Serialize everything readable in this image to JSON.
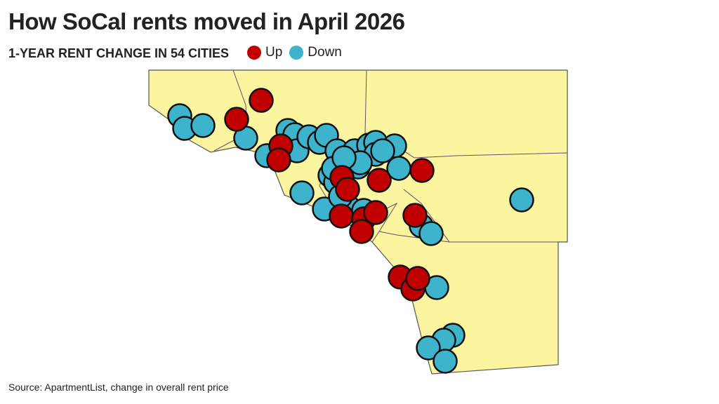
{
  "header": {
    "title": "How SoCal rents moved in April 2026",
    "subtitle": "1-YEAR RENT CHANGE IN 54 CITIES"
  },
  "legend": [
    {
      "label": "Up",
      "color": "#c00000"
    },
    {
      "label": "Down",
      "color": "#3db4cc"
    }
  ],
  "source": "Source: ApartmentList, change in overall rent price"
}
